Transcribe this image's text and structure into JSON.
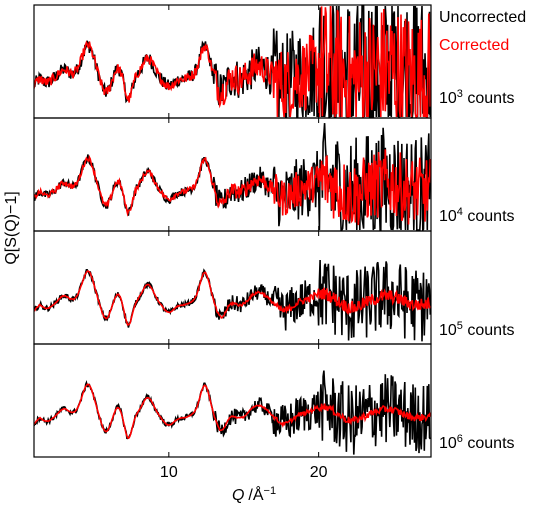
{
  "chart_data": {
    "type": "line",
    "xlabel_var": "Q",
    "xlabel_unit": "/Å",
    "xlabel_unit_sup": "−1",
    "ylabel": "Q[S(Q)−1]",
    "xlim": [
      1,
      27.5
    ],
    "xticks": [
      10,
      20
    ],
    "legend_position": "top-right",
    "series": [
      {
        "name": "Uncorrected",
        "color": "#000000"
      },
      {
        "name": "Corrected",
        "color": "#ff0000"
      }
    ],
    "panels": [
      {
        "count_base": "10",
        "count_exp": "3",
        "count_suffix": " counts",
        "noise_uncorrected": 2.6,
        "noise_corrected": 1.9
      },
      {
        "count_base": "10",
        "count_exp": "4",
        "count_suffix": " counts",
        "noise_uncorrected": 1.6,
        "noise_corrected": 0.95
      },
      {
        "count_base": "10",
        "count_exp": "5",
        "count_suffix": " counts",
        "noise_uncorrected": 1.05,
        "noise_corrected": 0.18
      },
      {
        "count_base": "10",
        "count_exp": "6",
        "count_suffix": " counts",
        "noise_uncorrected": 1.0,
        "noise_corrected": 0.1
      }
    ]
  }
}
